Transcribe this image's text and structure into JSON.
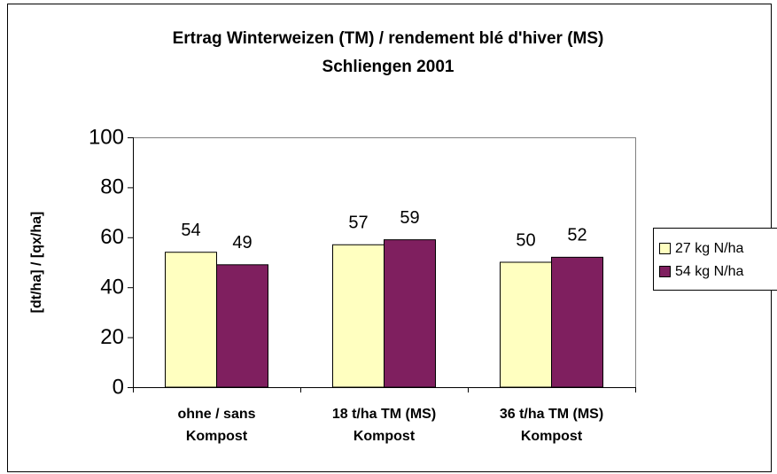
{
  "chart_data": {
    "type": "bar",
    "title": [
      "Ertrag Winterweizen (TM)  / rendement blé d'hiver (MS)",
      "Schliengen 2001"
    ],
    "y_label": "[dt/ha] / [qx/ha]",
    "categories": [
      [
        "ohne / sans",
        "Kompost"
      ],
      [
        "18 t/ha TM (MS)",
        "Kompost"
      ],
      [
        "36 t/ha TM (MS)",
        "Kompost"
      ]
    ],
    "series": [
      {
        "name": "27 kg N/ha",
        "color": "#ffffc0",
        "values": [
          54,
          57,
          50
        ]
      },
      {
        "name": "54 kg N/ha",
        "color": "#7f1f5f",
        "values": [
          49,
          59,
          52
        ]
      }
    ],
    "ylim": [
      0,
      100
    ],
    "yticks": [
      0,
      20,
      40,
      60,
      80,
      100
    ],
    "legend": "right"
  }
}
